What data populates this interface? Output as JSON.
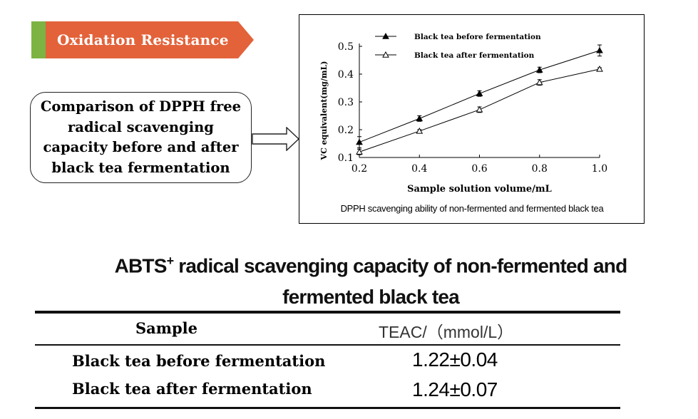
{
  "header": {
    "title": "Oxidation Resistance"
  },
  "callout": {
    "text": "Comparison of DPPH free radical scavenging capacity before and after black tea fermentation"
  },
  "colors": {
    "banner_orange": "#e3623a",
    "banner_green": "#7cb342"
  },
  "chart_data": {
    "type": "line",
    "caption": "DPPH scavenging ability of non-fermented and fermented black tea",
    "xlabel": "Sample solution volume/mL",
    "ylabel": "VC equivalent(mg/mL)",
    "x": [
      0.2,
      0.4,
      0.6,
      0.8,
      1.0
    ],
    "xticks": [
      "0.2",
      "0.4",
      "0.6",
      "0.8",
      "1.0"
    ],
    "yticks": [
      "0.1",
      "0.2",
      "0.3",
      "0.4",
      "0.5"
    ],
    "xlim": [
      0.2,
      1.0
    ],
    "ylim": [
      0.1,
      0.5
    ],
    "series": [
      {
        "name": "Black tea before fermentation",
        "marker": "filled-triangle",
        "values": [
          0.155,
          0.24,
          0.33,
          0.415,
          0.485
        ],
        "errors": [
          0.02,
          0.01,
          0.01,
          0.01,
          0.02
        ]
      },
      {
        "name": "Black tea after fermentation",
        "marker": "open-triangle",
        "values": [
          0.12,
          0.195,
          0.272,
          0.37,
          0.418
        ],
        "errors": [
          0.01,
          0.005,
          0.01,
          0.01,
          0.005
        ]
      }
    ],
    "legend_position": "top",
    "grid": false
  },
  "table": {
    "title_prefix": "ABTS",
    "title_sup": "+",
    "title_suffix": " radical scavenging capacity of non-fermented and fermented black tea",
    "columns": [
      "Sample",
      "TEAC/（mmol/L）"
    ],
    "rows": [
      [
        "Black tea before fermentation",
        "1.22±0.04"
      ],
      [
        "Black tea after fermentation",
        "1.24±0.07"
      ]
    ]
  }
}
